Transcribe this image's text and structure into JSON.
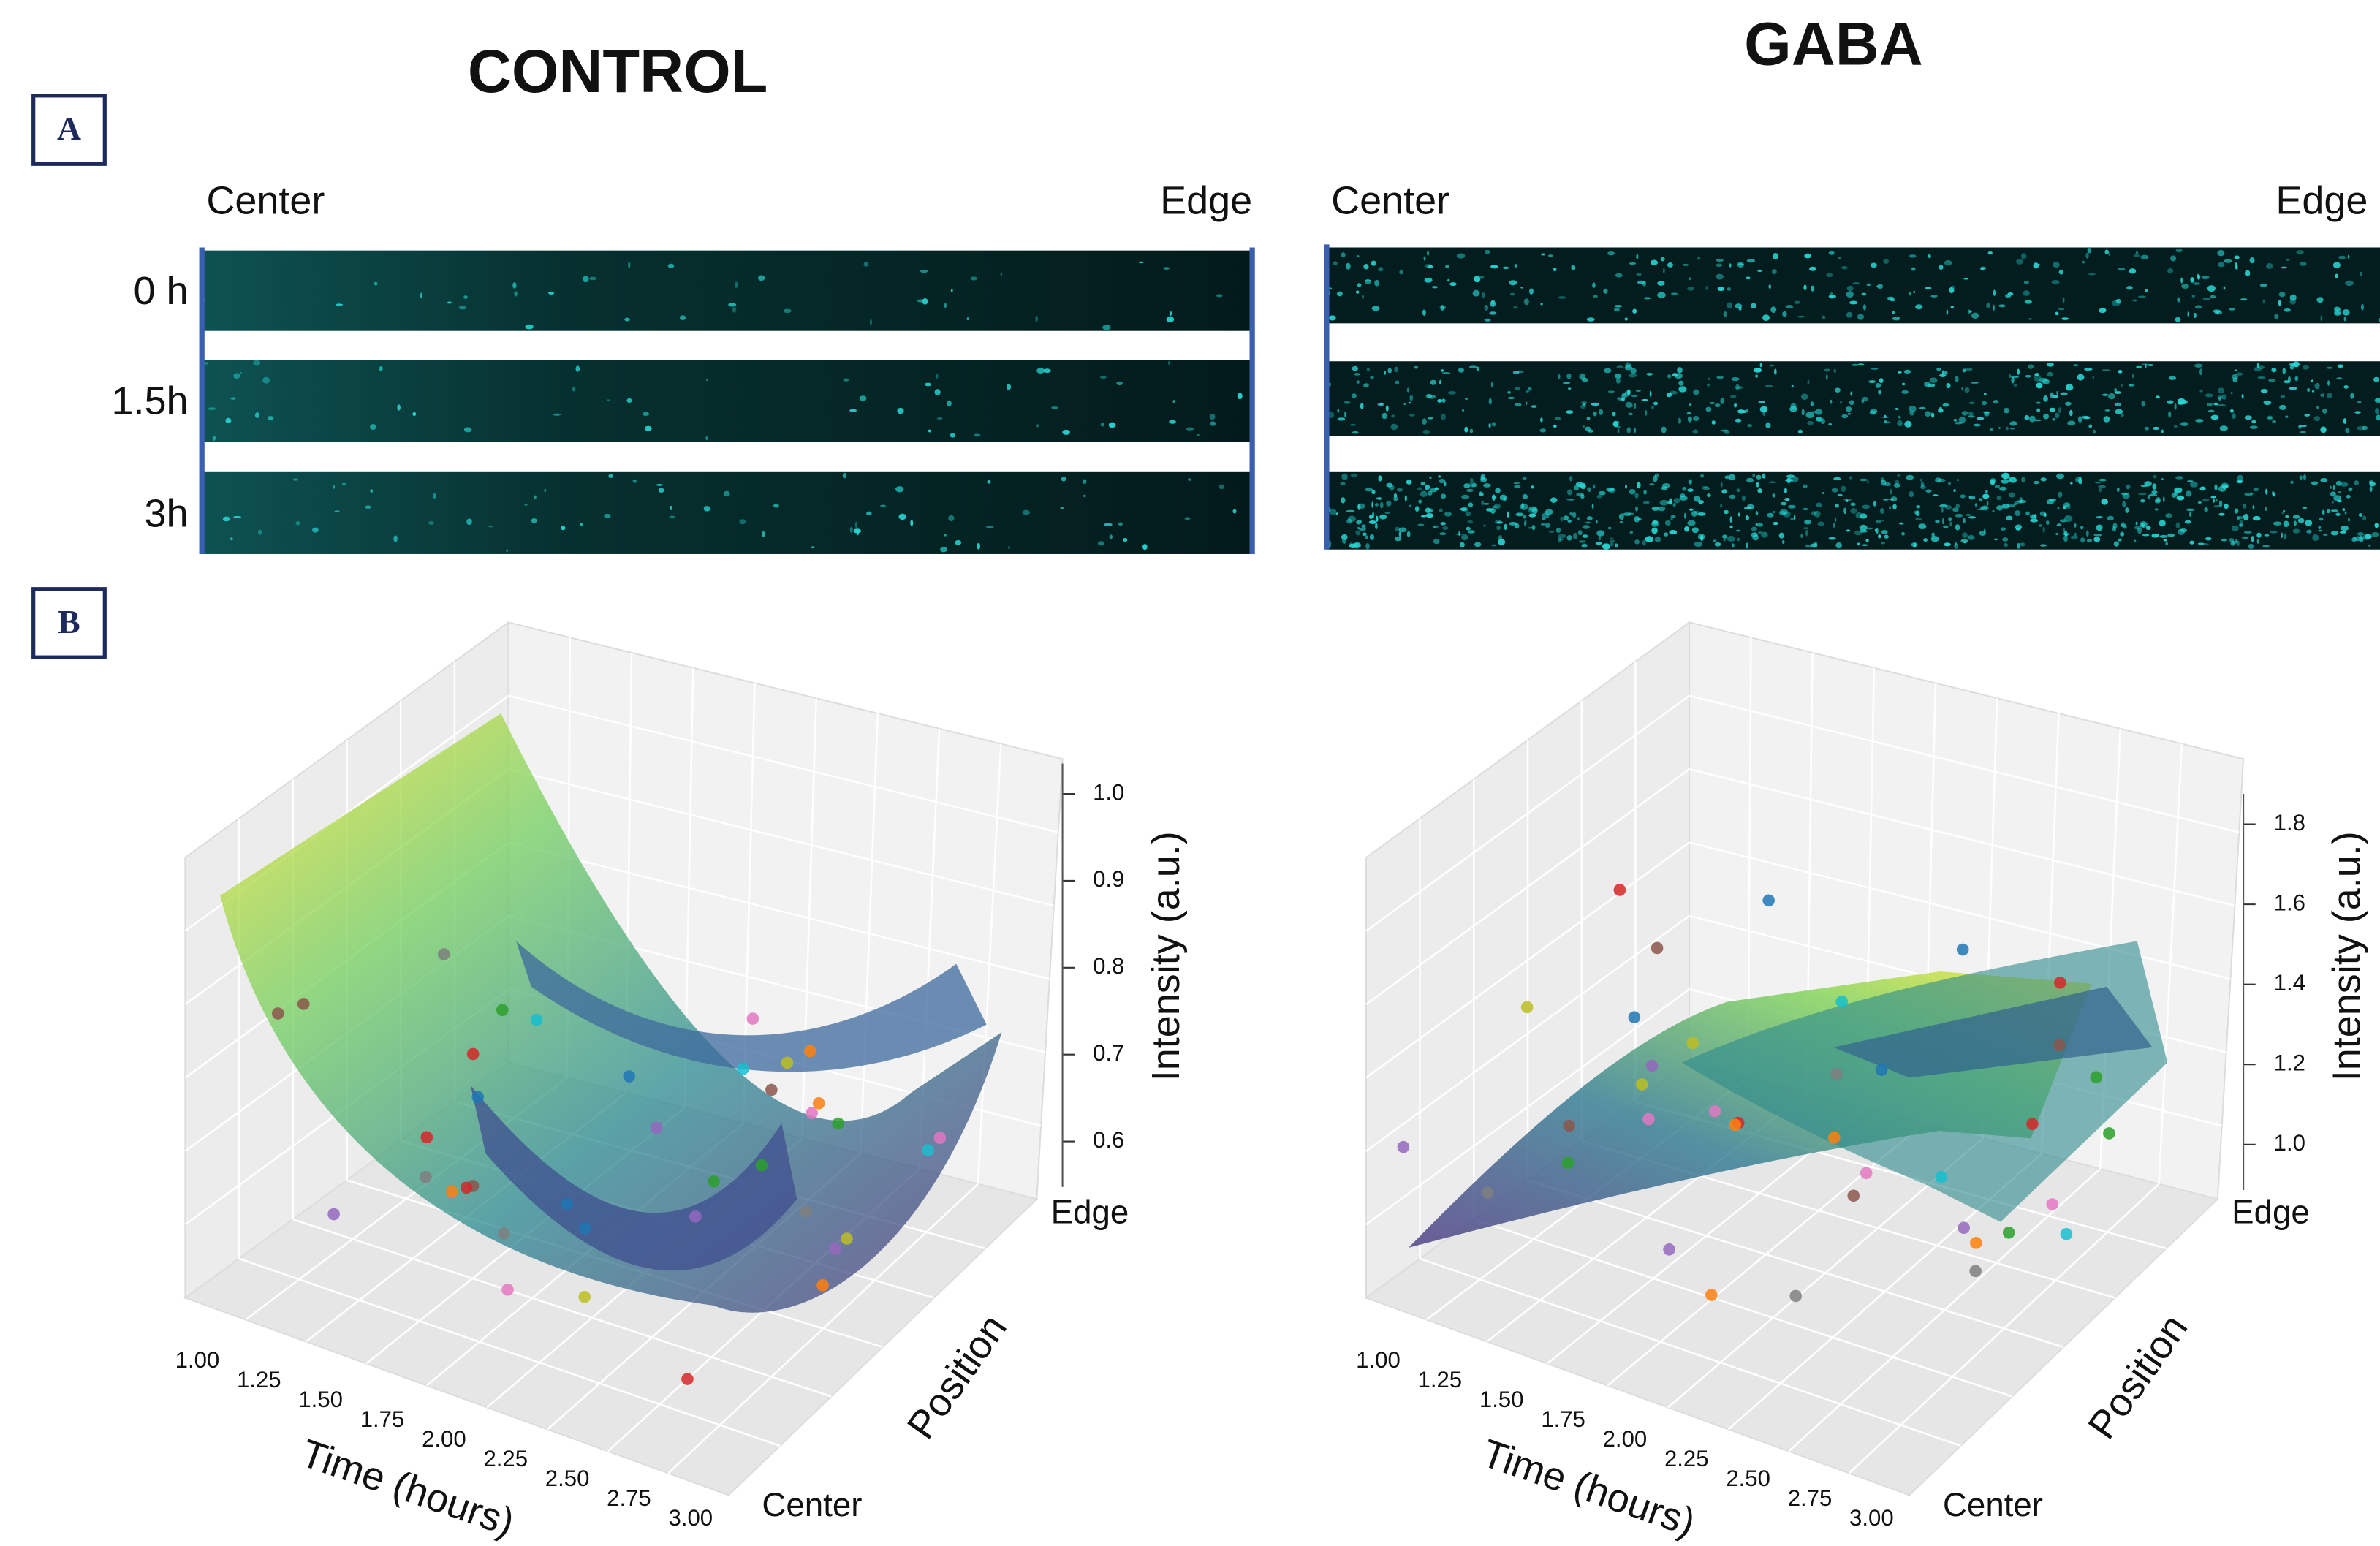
{
  "panel_labels": [
    "A",
    "B"
  ],
  "row_labels": [
    "0 h",
    "1.5h",
    "3h"
  ],
  "columns": [
    {
      "title": "CONTROL",
      "strip_left": "Center",
      "strip_right": "Edge",
      "plot": {
        "time_label": "Time (hours)",
        "time_ticks": [
          "1.00",
          "1.25",
          "1.50",
          "1.75",
          "2.00",
          "2.25",
          "2.50",
          "2.75",
          "3.00"
        ],
        "position_label": "Position",
        "position_ticks": [
          "Center",
          "Edge"
        ],
        "intensity_label": "Intensity (a.u.)",
        "intensity_ticks": [
          "0.6",
          "0.7",
          "0.8",
          "0.9",
          "1.0"
        ]
      }
    },
    {
      "title": "GABA",
      "strip_left": "Center",
      "strip_right": "Edge",
      "plot": {
        "time_label": "Time (hours)",
        "time_ticks": [
          "1.00",
          "1.25",
          "1.50",
          "1.75",
          "2.00",
          "2.25",
          "2.50",
          "2.75",
          "3.00"
        ],
        "position_label": "Position",
        "position_ticks": [
          "Center",
          "Edge"
        ],
        "intensity_label": "Intensity (a.u.)",
        "intensity_ticks": [
          "1.0",
          "1.2",
          "1.4",
          "1.6",
          "1.8"
        ]
      }
    }
  ]
}
